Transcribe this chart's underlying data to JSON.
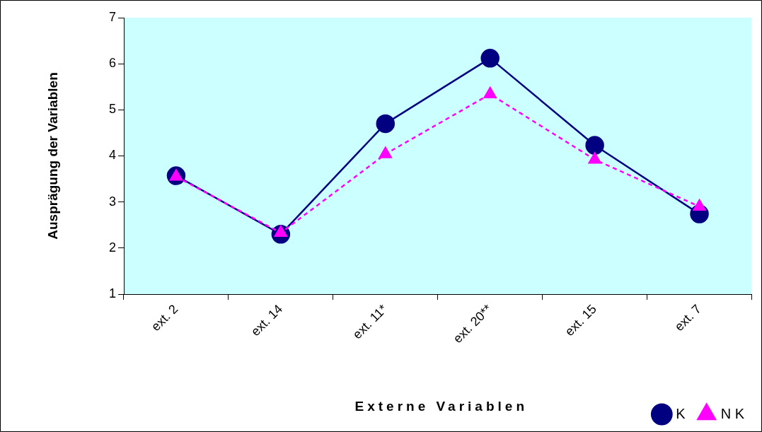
{
  "chart_data": {
    "type": "line",
    "xlabel": "Externe Variablen",
    "ylabel": "Ausprägung der Variablen",
    "categories": [
      "ext. 2",
      "ext. 14",
      "ext. 11*",
      "ext. 20**",
      "ext. 15",
      "ext. 7"
    ],
    "series": [
      {
        "name": "K",
        "color": "#000080",
        "marker": "circle",
        "line_style": "solid",
        "values": [
          3.57,
          2.3,
          4.7,
          6.12,
          4.23,
          2.74
        ]
      },
      {
        "name": "N K",
        "color": "#ff00ff",
        "marker": "triangle",
        "line_style": "dashed",
        "values": [
          3.55,
          2.33,
          4.04,
          5.34,
          3.92,
          2.9
        ]
      }
    ],
    "ylim": [
      1,
      7
    ],
    "yticks": [
      1,
      2,
      3,
      4,
      5,
      6,
      7
    ],
    "grid": false,
    "legend": "bottom right"
  }
}
